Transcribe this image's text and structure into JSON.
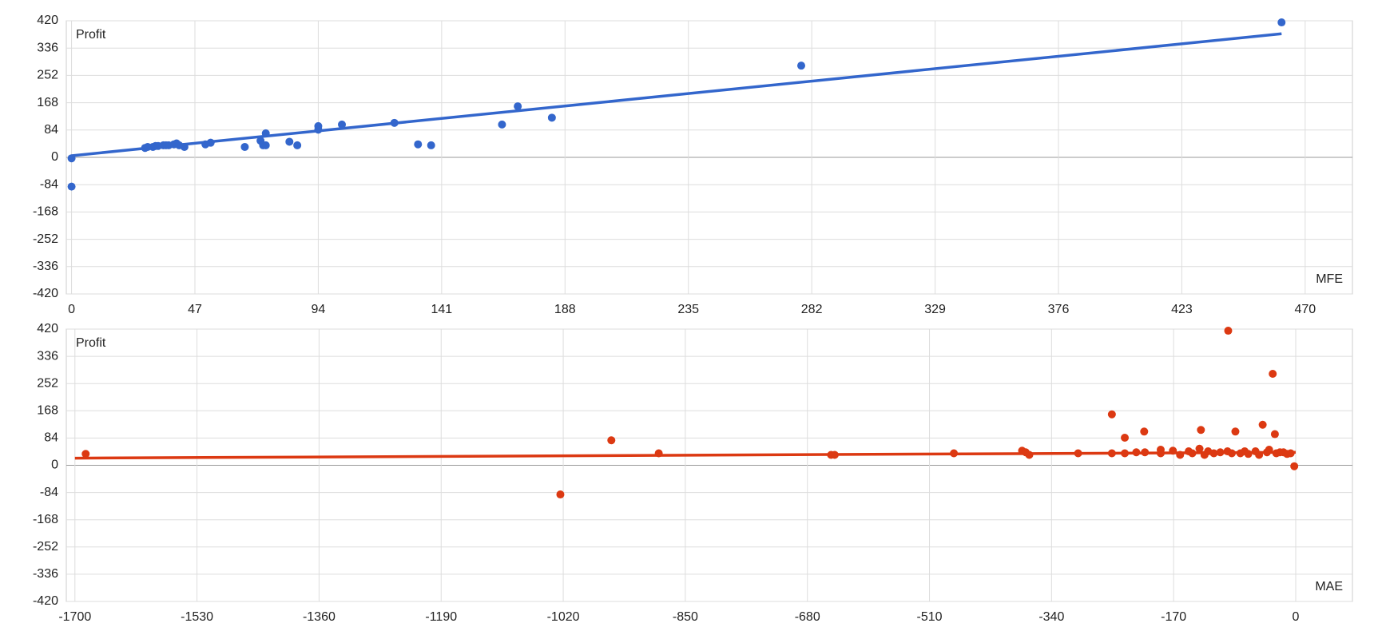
{
  "chart_data": [
    {
      "type": "scatter",
      "y_label": "Profit",
      "x_label": "MFE",
      "xlim": [
        -2,
        488
      ],
      "ylim": [
        -420,
        420
      ],
      "xticks": [
        0,
        47,
        94,
        141,
        188,
        235,
        282,
        329,
        376,
        423,
        470
      ],
      "yticks": [
        -420,
        -336,
        -252,
        -168,
        -84,
        0,
        84,
        168,
        252,
        336,
        420
      ],
      "grid": true,
      "series": [
        {
          "color": "#3366cc",
          "x": [
            0,
            0,
            28,
            29,
            31,
            32,
            33,
            35,
            36,
            37,
            39,
            40,
            41,
            43,
            51,
            53,
            66,
            72,
            73,
            74,
            74,
            83,
            86,
            94,
            94,
            103,
            123,
            132,
            137,
            164,
            170,
            183,
            278,
            461
          ],
          "values": [
            -3,
            -90,
            29,
            32,
            32,
            35,
            35,
            37,
            37,
            37,
            40,
            43,
            37,
            32,
            40,
            45,
            32,
            51,
            37,
            37,
            74,
            48,
            37,
            85,
            96,
            101,
            106,
            40,
            37,
            101,
            157,
            122,
            282,
            415
          ]
        }
      ],
      "trendline": {
        "color": "#3366cc",
        "x": [
          0,
          461
        ],
        "values": [
          5,
          380
        ]
      }
    },
    {
      "type": "scatter",
      "y_label": "Profit",
      "x_label": "MAE",
      "xlim": [
        -1712,
        79
      ],
      "ylim": [
        -420,
        420
      ],
      "xticks": [
        -1700,
        -1530,
        -1360,
        -1190,
        -1020,
        -850,
        -680,
        -510,
        -340,
        -170,
        0
      ],
      "yticks": [
        -420,
        -336,
        -252,
        -168,
        -84,
        0,
        84,
        168,
        252,
        336,
        420
      ],
      "grid": true,
      "series": [
        {
          "color": "#dc3912",
          "x": [
            -1685,
            -1024,
            -953,
            -887,
            -647,
            -642,
            -476,
            -381,
            -376,
            -371,
            -303,
            -256,
            -256,
            -238,
            -238,
            -222,
            -211,
            -210,
            -188,
            -188,
            -171,
            -161,
            -149,
            -144,
            -134,
            -132,
            -127,
            -122,
            -114,
            -105,
            -95,
            -94,
            -89,
            -84,
            -77,
            -71,
            -66,
            -56,
            -51,
            -46,
            -40,
            -37,
            -32,
            -29,
            -27,
            -22,
            -17,
            -12,
            -7,
            -2
          ],
          "values": [
            35,
            -90,
            77,
            37,
            32,
            32,
            37,
            45,
            40,
            32,
            37,
            157,
            37,
            85,
            37,
            40,
            104,
            40,
            37,
            48,
            45,
            32,
            43,
            37,
            51,
            109,
            32,
            43,
            37,
            40,
            43,
            415,
            37,
            104,
            37,
            43,
            35,
            43,
            32,
            125,
            40,
            48,
            282,
            96,
            37,
            40,
            40,
            35,
            37,
            -3
          ]
        }
      ],
      "trendline": {
        "color": "#dc3912",
        "x": [
          -1700,
          0
        ],
        "values": [
          22,
          40
        ]
      }
    }
  ]
}
